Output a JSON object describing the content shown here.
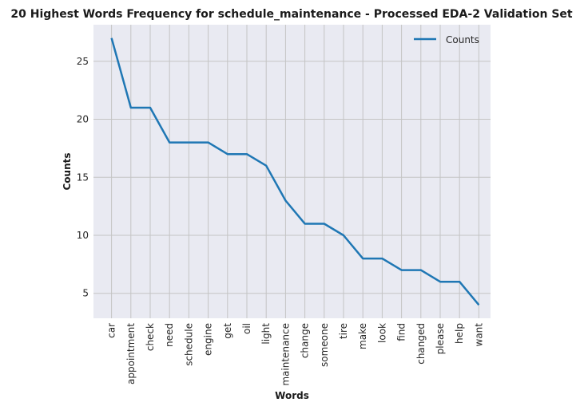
{
  "chart_data": {
    "type": "line",
    "title": "20 Highest Words Frequency for schedule_maintenance - Processed EDA-2 Validation Set",
    "xlabel": "Words",
    "ylabel": "Counts",
    "categories": [
      "car",
      "appointment",
      "check",
      "need",
      "schedule",
      "engine",
      "get",
      "oil",
      "light",
      "maintenance",
      "change",
      "someone",
      "tire",
      "make",
      "look",
      "find",
      "changed",
      "please",
      "help",
      "want"
    ],
    "series": [
      {
        "name": "Counts",
        "values": [
          27,
          21,
          21,
          18,
          18,
          18,
          17,
          17,
          16,
          13,
          11,
          11,
          10,
          8,
          8,
          7,
          7,
          6,
          6,
          4
        ],
        "color": "#1f77b4"
      }
    ],
    "ylim": [
      2.85,
      28.15
    ],
    "yticks": [
      5,
      10,
      15,
      20,
      25
    ],
    "grid": true,
    "legend": "top-right",
    "background": "#e9eaf2",
    "grid_color": "#c4c4c4"
  }
}
